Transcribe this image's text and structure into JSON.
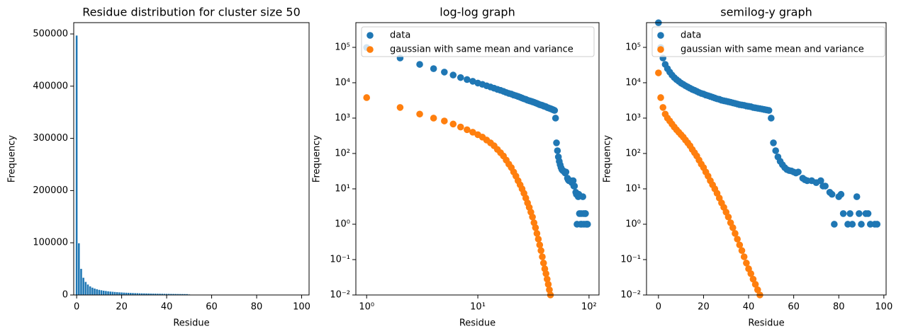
{
  "chart_data": [
    {
      "type": "bar",
      "title": "Residue distribution for cluster size 50",
      "x_label": "Residue",
      "y_label": "Frequency",
      "color": "#1f77b4",
      "x": [
        0,
        1,
        2,
        3,
        4,
        5,
        6,
        7,
        8,
        9,
        10,
        11,
        12,
        13,
        14,
        15,
        16,
        17,
        18,
        19,
        20,
        21,
        22,
        23,
        24,
        25,
        26,
        27,
        28,
        29,
        30,
        31,
        32,
        33,
        34,
        35,
        36,
        37,
        38,
        39,
        40,
        41,
        42,
        43,
        44,
        45,
        46,
        47,
        48,
        49,
        50
      ],
      "values": [
        497000,
        99000,
        50000,
        33000,
        25000,
        20000,
        16500,
        14000,
        12300,
        11000,
        9800,
        9000,
        8200,
        7600,
        7000,
        6500,
        6100,
        5700,
        5300,
        5000,
        4800,
        4500,
        4300,
        4100,
        3900,
        3700,
        3500,
        3400,
        3200,
        3100,
        3000,
        2900,
        2800,
        2700,
        2600,
        2500,
        2400,
        2350,
        2300,
        2200,
        2150,
        2100,
        2000,
        1950,
        1900,
        1850,
        1800,
        1750,
        1700,
        1650,
        1000
      ],
      "xlim": [
        -1.3,
        103.3
      ],
      "ylim": [
        0,
        521700
      ],
      "xticks": [
        0,
        20,
        40,
        60,
        80,
        100
      ],
      "yticks": [
        0,
        100000,
        200000,
        300000,
        400000,
        500000
      ],
      "xscale": "linear",
      "yscale": "linear"
    },
    {
      "type": "scatter",
      "title": "log-log graph",
      "x_label": "Residue",
      "y_label": "Frequency",
      "legend": "upper left",
      "xscale": "log",
      "yscale": "log",
      "xlim": [
        0.8,
        123
      ],
      "ylim": [
        0.01,
        500000
      ],
      "xticks": [
        {
          "value": 1,
          "label": "10⁰"
        },
        {
          "value": 10,
          "label": "10¹"
        },
        {
          "value": 100,
          "label": "10²"
        }
      ],
      "yticks": [
        {
          "value": 0.01,
          "label": "10⁻²"
        },
        {
          "value": 0.1,
          "label": "10⁻¹"
        },
        {
          "value": 1,
          "label": "10⁰"
        },
        {
          "value": 10,
          "label": "10¹"
        },
        {
          "value": 100,
          "label": "10²"
        },
        {
          "value": 1000,
          "label": "10³"
        },
        {
          "value": 10000,
          "label": "10⁴"
        },
        {
          "value": 100000,
          "label": "10⁵"
        }
      ],
      "series": [
        {
          "name": "data",
          "color": "#1f77b4",
          "x": [
            1,
            2,
            3,
            4,
            5,
            6,
            7,
            8,
            9,
            10,
            11,
            12,
            13,
            14,
            15,
            16,
            17,
            18,
            19,
            20,
            21,
            22,
            23,
            24,
            25,
            26,
            27,
            28,
            29,
            30,
            31,
            32,
            33,
            34,
            35,
            36,
            37,
            38,
            39,
            40,
            41,
            42,
            43,
            44,
            45,
            46,
            47,
            48,
            49,
            50,
            51,
            52,
            53,
            54,
            55,
            56,
            57,
            58,
            59,
            60,
            61,
            62,
            64,
            65,
            66,
            68,
            70,
            72,
            73,
            74,
            76,
            77,
            78,
            80,
            81,
            82,
            84,
            85,
            86,
            88,
            89,
            90,
            92,
            93,
            94,
            96,
            97
          ],
          "values": [
            99000,
            50000,
            33000,
            25000,
            20000,
            16500,
            14000,
            12300,
            11000,
            9800,
            9000,
            8200,
            7600,
            7000,
            6500,
            6100,
            5700,
            5300,
            5000,
            4800,
            4500,
            4300,
            4100,
            3900,
            3700,
            3500,
            3400,
            3200,
            3100,
            3000,
            2900,
            2800,
            2700,
            2600,
            2500,
            2400,
            2350,
            2300,
            2200,
            2150,
            2100,
            2000,
            1950,
            1900,
            1850,
            1800,
            1750,
            1700,
            1650,
            1000,
            200,
            120,
            80,
            60,
            48,
            40,
            35,
            33,
            32,
            30,
            28,
            30,
            20,
            18,
            17,
            17,
            15,
            17,
            12,
            12,
            8,
            7,
            1,
            6,
            7,
            2,
            1,
            2,
            1,
            6,
            2,
            1,
            2,
            2,
            1,
            1,
            1
          ]
        },
        {
          "name": "gaussian with same mean and variance",
          "color": "#ff7f0e",
          "x": [
            1,
            2,
            3,
            4,
            5,
            6,
            7,
            8,
            9,
            10,
            11,
            12,
            13,
            14,
            15,
            16,
            17,
            18,
            19,
            20,
            21,
            22,
            23,
            24,
            25,
            26,
            27,
            28,
            29,
            30,
            31,
            32,
            33,
            34,
            35,
            36,
            37,
            38,
            39,
            40,
            41,
            42,
            43,
            44,
            45
          ],
          "values": [
            3800,
            2000,
            1300,
            1000,
            830,
            680,
            560,
            470,
            400,
            340,
            290,
            240,
            200,
            165,
            130,
            105,
            85,
            65,
            50,
            40,
            30,
            23,
            17,
            13,
            10,
            7.5,
            5.5,
            4,
            3,
            2.2,
            1.6,
            1.1,
            0.8,
            0.55,
            0.38,
            0.26,
            0.18,
            0.12,
            0.08,
            0.055,
            0.04,
            0.028,
            0.02,
            0.014,
            0.01
          ]
        }
      ]
    },
    {
      "type": "scatter",
      "title": "semilog-y graph",
      "x_label": "Residue",
      "y_label": "Frequency",
      "legend": "upper left",
      "xscale": "linear",
      "yscale": "log",
      "xlim": [
        -5.3,
        101
      ],
      "ylim": [
        0.01,
        500000
      ],
      "xticks": [
        0,
        20,
        40,
        60,
        80,
        100
      ],
      "yticks": [
        {
          "value": 0.01,
          "label": "10⁻²"
        },
        {
          "value": 0.1,
          "label": "10⁻¹"
        },
        {
          "value": 1,
          "label": "10⁰"
        },
        {
          "value": 10,
          "label": "10¹"
        },
        {
          "value": 100,
          "label": "10²"
        },
        {
          "value": 1000,
          "label": "10³"
        },
        {
          "value": 10000,
          "label": "10⁴"
        },
        {
          "value": 100000,
          "label": "10⁵"
        }
      ],
      "series": [
        {
          "name": "data",
          "color": "#1f77b4",
          "x": [
            0,
            1,
            2,
            3,
            4,
            5,
            6,
            7,
            8,
            9,
            10,
            11,
            12,
            13,
            14,
            15,
            16,
            17,
            18,
            19,
            20,
            21,
            22,
            23,
            24,
            25,
            26,
            27,
            28,
            29,
            30,
            31,
            32,
            33,
            34,
            35,
            36,
            37,
            38,
            39,
            40,
            41,
            42,
            43,
            44,
            45,
            46,
            47,
            48,
            49,
            50,
            51,
            52,
            53,
            54,
            55,
            56,
            57,
            58,
            59,
            60,
            61,
            62,
            64,
            65,
            66,
            68,
            70,
            72,
            73,
            74,
            76,
            77,
            78,
            80,
            81,
            82,
            84,
            85,
            86,
            88,
            89,
            90,
            92,
            93,
            94,
            96,
            97
          ],
          "values": [
            497000,
            99000,
            50000,
            33000,
            25000,
            20000,
            16500,
            14000,
            12300,
            11000,
            9800,
            9000,
            8200,
            7600,
            7000,
            6500,
            6100,
            5700,
            5300,
            5000,
            4800,
            4500,
            4300,
            4100,
            3900,
            3700,
            3500,
            3400,
            3200,
            3100,
            3000,
            2900,
            2800,
            2700,
            2600,
            2500,
            2400,
            2350,
            2300,
            2200,
            2150,
            2100,
            2000,
            1950,
            1900,
            1850,
            1800,
            1750,
            1700,
            1650,
            1000,
            200,
            120,
            80,
            60,
            48,
            40,
            35,
            33,
            32,
            30,
            28,
            30,
            20,
            18,
            17,
            17,
            15,
            17,
            12,
            12,
            8,
            7,
            1,
            6,
            7,
            2,
            1,
            2,
            1,
            6,
            2,
            1,
            2,
            2,
            1,
            1,
            1
          ]
        },
        {
          "name": "gaussian with same mean and variance",
          "color": "#ff7f0e",
          "x": [
            0,
            1,
            2,
            3,
            4,
            5,
            6,
            7,
            8,
            9,
            10,
            11,
            12,
            13,
            14,
            15,
            16,
            17,
            18,
            19,
            20,
            21,
            22,
            23,
            24,
            25,
            26,
            27,
            28,
            29,
            30,
            31,
            32,
            33,
            34,
            35,
            36,
            37,
            38,
            39,
            40,
            41,
            42,
            43,
            44,
            45
          ],
          "values": [
            19000,
            3800,
            2000,
            1300,
            1000,
            830,
            680,
            560,
            470,
            400,
            340,
            290,
            240,
            200,
            165,
            130,
            105,
            85,
            65,
            50,
            40,
            30,
            23,
            17,
            13,
            10,
            7.5,
            5.5,
            4,
            3,
            2.2,
            1.6,
            1.1,
            0.8,
            0.55,
            0.38,
            0.26,
            0.18,
            0.12,
            0.08,
            0.055,
            0.04,
            0.028,
            0.02,
            0.014,
            0.01
          ]
        }
      ]
    }
  ]
}
